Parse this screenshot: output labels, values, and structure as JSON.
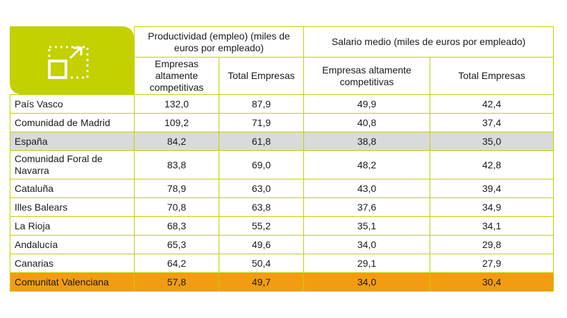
{
  "colors": {
    "accent_green": "#c3d100",
    "spain_row": "#d9dadb",
    "valencia_row": "#f39c12"
  },
  "icon": "expand-icon",
  "header": {
    "group1": "Productividad (empleo) (miles de euros por empleado)",
    "group2": "Salario medio (miles de euros por empleado)",
    "sub_competitive": "Empresas altamente competitivas",
    "sub_total": "Total Empresas"
  },
  "rows": [
    {
      "region": "País Vasco",
      "prod_comp": "132,0",
      "prod_total": "87,9",
      "sal_comp": "49,9",
      "sal_total": "42,4"
    },
    {
      "region": "Comunidad de Madrid",
      "prod_comp": "109,2",
      "prod_total": "71,9",
      "sal_comp": "40,8",
      "sal_total": "37,4"
    },
    {
      "region": "España",
      "prod_comp": "84,2",
      "prod_total": "61,8",
      "sal_comp": "38,8",
      "sal_total": "35,0"
    },
    {
      "region": "Comunidad Foral de Navarra",
      "prod_comp": "83,8",
      "prod_total": "69,0",
      "sal_comp": "48,2",
      "sal_total": "42,8"
    },
    {
      "region": "Cataluña",
      "prod_comp": "78,9",
      "prod_total": "63,0",
      "sal_comp": "43,0",
      "sal_total": "39,4"
    },
    {
      "region": "Illes Balears",
      "prod_comp": "70,8",
      "prod_total": "63,8",
      "sal_comp": "37,6",
      "sal_total": "34,9"
    },
    {
      "region": "La Rioja",
      "prod_comp": "68,3",
      "prod_total": "55,2",
      "sal_comp": "35,1",
      "sal_total": "34,1"
    },
    {
      "region": "Andalucía",
      "prod_comp": "65,3",
      "prod_total": "49,6",
      "sal_comp": "34,0",
      "sal_total": "29,8"
    },
    {
      "region": "Canarias",
      "prod_comp": "64,2",
      "prod_total": "50,4",
      "sal_comp": "29,1",
      "sal_total": "27,9"
    },
    {
      "region": "Comunitat Valenciana",
      "prod_comp": "57,8",
      "prod_total": "49,7",
      "sal_comp": "34,0",
      "sal_total": "30,4"
    }
  ]
}
